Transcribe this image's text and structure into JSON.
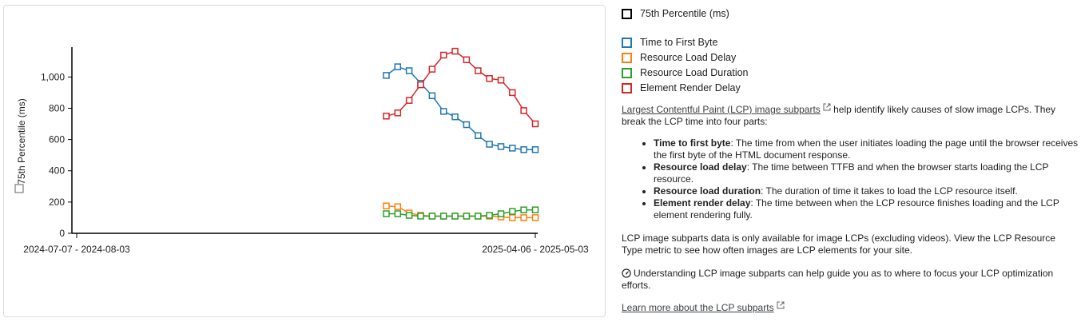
{
  "chart_data": {
    "type": "line",
    "ylabel": "75th Percentile (ms)",
    "ylim": [
      0,
      1150
    ],
    "yticks": [
      "0",
      "200",
      "400",
      "600",
      "800",
      "1,000"
    ],
    "ytick_values": [
      0,
      200,
      400,
      600,
      800,
      1000
    ],
    "xticks": [
      {
        "label": "2024-07-07 - 2024-08-03",
        "index": 0
      },
      {
        "label": "2025-04-06 - 2025-05-03",
        "index": 40
      }
    ],
    "x_count": 41,
    "x_start_index": 27,
    "series": [
      {
        "name": "Time to First Byte",
        "color": "#1f77b4",
        "values": [
          1010,
          1065,
          1040,
          960,
          880,
          780,
          745,
          695,
          625,
          570,
          555,
          545,
          535,
          535
        ]
      },
      {
        "name": "Resource Load Delay",
        "color": "#ff7f0e",
        "values": [
          175,
          170,
          130,
          115,
          110,
          110,
          110,
          110,
          110,
          110,
          105,
          100,
          100,
          100
        ]
      },
      {
        "name": "Resource Load Duration",
        "color": "#2ca02c",
        "values": [
          125,
          125,
          115,
          110,
          110,
          110,
          110,
          110,
          110,
          115,
          125,
          140,
          150,
          150
        ]
      },
      {
        "name": "Element Render Delay",
        "color": "#d62728",
        "values": [
          750,
          770,
          850,
          950,
          1050,
          1140,
          1165,
          1110,
          1040,
          990,
          980,
          900,
          785,
          700
        ]
      }
    ]
  },
  "legend": {
    "primary": "75th Percentile (ms)",
    "primary_color": "#000000"
  },
  "description": {
    "link_text": "Largest Contentful Paint (LCP) image subparts",
    "intro_rest": " help identify likely causes of slow image LCPs. They break the LCP time into four parts:",
    "items": [
      {
        "term": "Time to first byte",
        "text": ": The time from when the user initiates loading the page until the browser receives the first byte of the HTML document response."
      },
      {
        "term": "Resource load delay",
        "text": ": The time between TTFB and when the browser starts loading the LCP resource."
      },
      {
        "term": "Resource load duration",
        "text": ": The duration of time it takes to load the LCP resource itself."
      },
      {
        "term": "Element render delay",
        "text": ": The time between when the LCP resource finishes loading and the LCP element rendering fully."
      }
    ],
    "para2": "LCP image subparts data is only available for image LCPs (excluding videos). View the LCP Resource Type metric to see how often images are LCP elements for your site.",
    "para3": "Understanding LCP image subparts can help guide you as to where to focus your LCP optimization efforts.",
    "learn_more": "Learn more about the LCP subparts"
  }
}
